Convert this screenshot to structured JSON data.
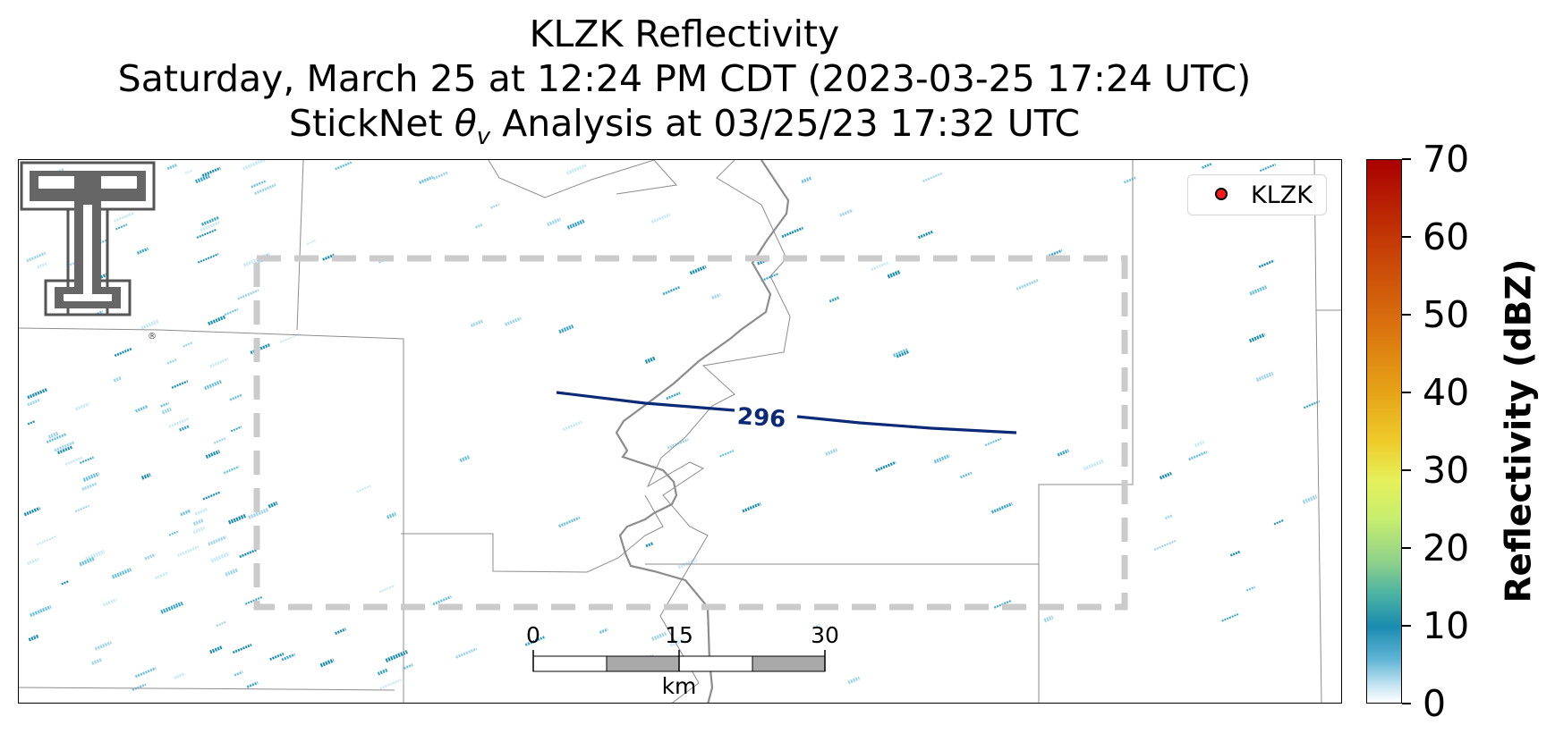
{
  "title": {
    "line1": "KLZK Reflectivity",
    "line2": "Saturday, March 25 at 12:24 PM CDT (2023-03-25 17:24 UTC)",
    "line3_pre": "StickNet ",
    "line3_symbol": "θ",
    "line3_sub": "v",
    "line3_post": " Analysis at 03/25/23 17:32 UTC"
  },
  "legend": {
    "label": "KLZK",
    "marker_color": "#ff1a1a"
  },
  "contour": {
    "label": "296",
    "color": "#0a2a78"
  },
  "analysis_box": {
    "style": "dashed",
    "color": "#c8c8c8"
  },
  "scale_bar": {
    "ticks": [
      "0",
      "15",
      "30"
    ],
    "unit": "km"
  },
  "colorbar": {
    "title": "Reflectivity (dBZ)",
    "ticks": [
      "0",
      "10",
      "20",
      "30",
      "40",
      "50",
      "60",
      "70"
    ],
    "min": 0,
    "max": 70
  },
  "logo": {
    "name": "texas-tech-double-t-logo",
    "trademark": "®"
  },
  "colors": {
    "county_lines": "#8c8c8c",
    "state_line": "#8a8a8a",
    "echo_light": "#9fd3ea",
    "echo_dark": "#1a8cb0"
  }
}
